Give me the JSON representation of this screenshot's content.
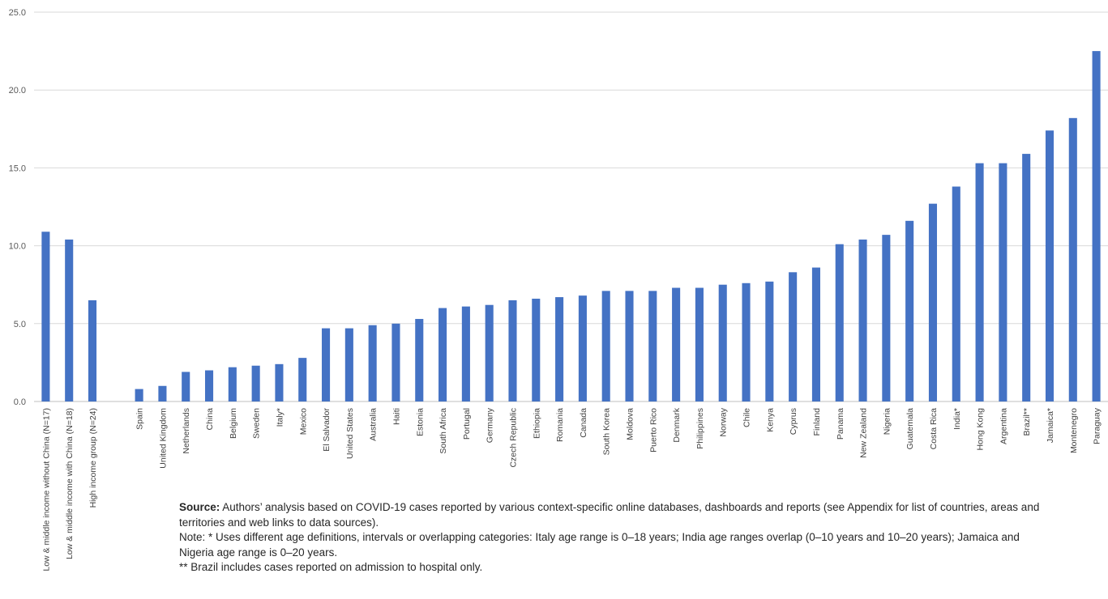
{
  "chart_data": {
    "type": "bar",
    "title": "",
    "xlabel": "",
    "ylabel": "",
    "ylim": [
      0,
      25
    ],
    "yticks": [
      "0.0",
      "5.0",
      "10.0",
      "15.0",
      "20.0",
      "25.0"
    ],
    "grid": true,
    "legend": "none",
    "bar_color": "#4472C4",
    "categories": [
      "Low & middle income without China (N=17)",
      "Low & middle income with China (N=18)",
      "High income group (N=24)",
      "",
      "Spain",
      "United Kingdom",
      "Netherlands",
      "China",
      "Belgium",
      "Sweden",
      "Italy*",
      "Mexico",
      "El Salvador",
      "United States",
      "Australia",
      "Haiti",
      "Estonia",
      "South Africa",
      "Portugal",
      "Germany",
      "Czech Republic",
      "Ethiopia",
      "Romania",
      "Canada",
      "South Korea",
      "Moldova",
      "Puerto Rico",
      "Denmark",
      "Philippines",
      "Norway",
      "Chile",
      "Kenya",
      "Cyprus",
      "Finland",
      "Panama",
      "New Zealand",
      "Nigeria",
      "Guatemala",
      "Costa Rica",
      "India*",
      "Hong Kong",
      "Argentina",
      "Brazil**",
      "Jamaica*",
      "Montenegro",
      "Paraguay"
    ],
    "values": [
      10.9,
      10.4,
      6.5,
      null,
      0.8,
      1.0,
      1.9,
      2.0,
      2.2,
      2.3,
      2.4,
      2.8,
      4.7,
      4.7,
      4.9,
      5.0,
      5.3,
      6.0,
      6.1,
      6.2,
      6.5,
      6.6,
      6.7,
      6.8,
      7.1,
      7.1,
      7.1,
      7.3,
      7.3,
      7.5,
      7.6,
      7.7,
      8.3,
      8.6,
      10.1,
      10.4,
      10.7,
      11.6,
      12.7,
      13.8,
      15.3,
      15.3,
      15.9,
      17.4,
      18.2,
      22.5
    ]
  },
  "notes": {
    "source_label": "Source:",
    "source_text": " Authors’ analysis based on COVID-19 cases reported by various context-specific online databases, dashboards and reports (see Appendix for list of countries, areas and territories and web links to data sources).",
    "note1": "Note: * Uses different age definitions, intervals or overlapping categories: Italy age range is 0–18 years; India age ranges overlap (0–10 years and 10–20 years); Jamaica and Nigeria age range is 0–20 years.",
    "note2": "** Brazil includes cases reported on admission to hospital only."
  }
}
